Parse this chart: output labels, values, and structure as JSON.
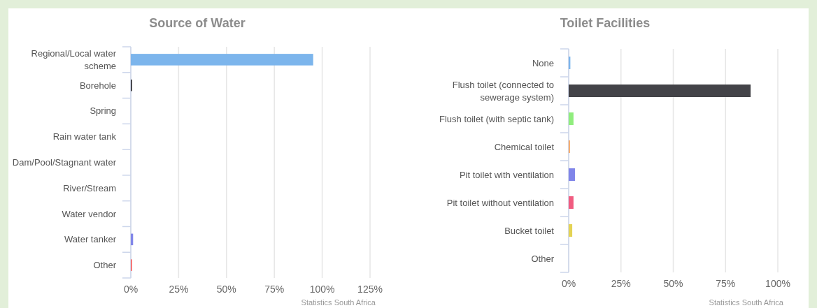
{
  "chart_data": [
    {
      "type": "bar",
      "orientation": "horizontal",
      "title": "Source of Water",
      "categories": [
        "Regional/Local water scheme",
        "Borehole",
        "Spring",
        "Rain water tank",
        "Dam/Pool/Stagnant water",
        "River/Stream",
        "Water vendor",
        "Water tanker",
        "Other"
      ],
      "values": [
        95.3,
        0.7,
        0,
        0,
        0,
        0,
        0,
        1.2,
        0.6
      ],
      "colors": [
        "#7cb5ec",
        "#434348",
        "#90ed7d",
        "#f7a35c",
        "#8085e9",
        "#f15c80",
        "#e4d354",
        "#8085e9",
        "#f45b5b"
      ],
      "xlim": [
        0,
        125
      ],
      "xticks": [
        {
          "value": 0,
          "label": "0%"
        },
        {
          "value": 25,
          "label": "25%"
        },
        {
          "value": 50,
          "label": "50%"
        },
        {
          "value": 75,
          "label": "75%"
        },
        {
          "value": 100,
          "label": "100%"
        },
        {
          "value": 125,
          "label": "125%"
        }
      ],
      "grid": "x",
      "annotations": [
        "Statistics South Africa"
      ]
    },
    {
      "type": "bar",
      "orientation": "horizontal",
      "title": "Toilet Facilities",
      "categories": [
        "None",
        "Flush toilet (connected to sewerage system)",
        "Flush toilet (with septic tank)",
        "Chemical toilet",
        "Pit toilet with ventilation",
        "Pit toilet without ventilation",
        "Bucket toilet",
        "Other"
      ],
      "values": [
        0.8,
        87,
        2.3,
        0.6,
        3,
        2.3,
        1.7,
        0
      ],
      "colors": [
        "#7cb5ec",
        "#434348",
        "#90ed7d",
        "#f7a35c",
        "#8085e9",
        "#f15c80",
        "#e4d354",
        "#2b908f"
      ],
      "xlim": [
        0,
        100
      ],
      "xticks": [
        {
          "value": 0,
          "label": "0%"
        },
        {
          "value": 25,
          "label": "25%"
        },
        {
          "value": 50,
          "label": "50%"
        },
        {
          "value": 75,
          "label": "75%"
        },
        {
          "value": 100,
          "label": "100%"
        }
      ],
      "grid": "x",
      "annotations": [
        "Statistics South Africa"
      ]
    }
  ]
}
